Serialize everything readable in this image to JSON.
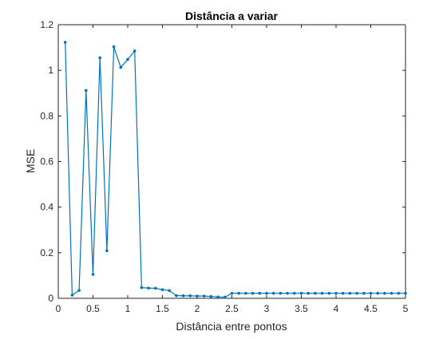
{
  "chart_data": {
    "type": "line",
    "title": "Distância a variar",
    "xlabel": "Distância entre pontos",
    "ylabel": "MSE",
    "xlim": [
      0,
      5
    ],
    "ylim": [
      0,
      1.2
    ],
    "grid": false,
    "legend": "none",
    "line_color": "#0072BD",
    "axis_color": "#262626",
    "xticks": [
      0,
      0.5,
      1,
      1.5,
      2,
      2.5,
      3,
      3.5,
      4,
      4.5,
      5
    ],
    "xtick_labels": [
      "0",
      "0.5",
      "1",
      "1.5",
      "2",
      "2.5",
      "3",
      "3.5",
      "4",
      "4.5",
      "5"
    ],
    "yticks": [
      0,
      0.2,
      0.4,
      0.6,
      0.8,
      1,
      1.2
    ],
    "ytick_labels": [
      "0",
      "0.2",
      "0.4",
      "0.6",
      "0.8",
      "1",
      "1.2"
    ],
    "series": [
      {
        "x": [
          0.1,
          0.2,
          0.3,
          0.4,
          0.5,
          0.6,
          0.7,
          0.8,
          0.9,
          1.0,
          1.1,
          1.2,
          1.3,
          1.4,
          1.5,
          1.6,
          1.7,
          1.8,
          1.9,
          2.0,
          2.1,
          2.2,
          2.3,
          2.4,
          2.5,
          2.6,
          2.7,
          2.8,
          2.9,
          3.0,
          3.1,
          3.2,
          3.3,
          3.4,
          3.5,
          3.6,
          3.7,
          3.8,
          3.9,
          4.0,
          4.1,
          4.2,
          4.3,
          4.4,
          4.5,
          4.6,
          4.7,
          4.8,
          4.9,
          5.0
        ],
        "y": [
          1.123,
          0.014,
          0.035,
          0.912,
          0.105,
          1.055,
          0.209,
          1.103,
          1.013,
          1.048,
          1.085,
          0.047,
          0.045,
          0.044,
          0.038,
          0.034,
          0.012,
          0.011,
          0.011,
          0.01,
          0.01,
          0.008,
          0.006,
          0.005,
          0.022,
          0.022,
          0.022,
          0.022,
          0.022,
          0.022,
          0.022,
          0.022,
          0.022,
          0.022,
          0.022,
          0.022,
          0.022,
          0.022,
          0.022,
          0.022,
          0.022,
          0.022,
          0.022,
          0.022,
          0.022,
          0.022,
          0.022,
          0.022,
          0.022,
          0.022
        ]
      }
    ]
  }
}
